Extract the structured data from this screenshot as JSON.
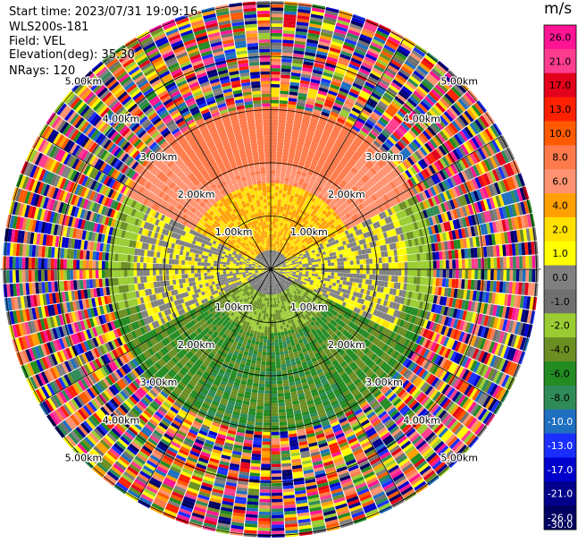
{
  "info": {
    "start_time": "Start time: 2023/07/31 19:09:16",
    "instrument": "WLS200s-181",
    "field": "Field: VEL",
    "elevation": "Elevation(deg): 35.30",
    "nrays": "NRays: 120"
  },
  "colorbar": {
    "unit": "m/s",
    "ticks": [
      "26.0",
      "21.0",
      "17.0",
      "13.0",
      "10.0",
      "8.0",
      "6.0",
      "4.0",
      "2.0",
      "1.0",
      "0.0",
      "-1.0",
      "-2.0",
      "-4.0",
      "-6.0",
      "-8.0",
      "-10.0",
      "-13.0",
      "-17.0",
      "-21.0",
      "-26.0",
      "-30.0"
    ],
    "colors": [
      "#ff1493",
      "#ff3d8f",
      "#e3001b",
      "#ff2000",
      "#ff5a00",
      "#ff7a4a",
      "#ff9270",
      "#ffa000",
      "#ffe000",
      "#ffff00",
      "#808080",
      "#707070",
      "#9acd32",
      "#6b8e23",
      "#228b22",
      "#2e8b57",
      "#1e6fc0",
      "#1a2fff",
      "#0000cd",
      "#00008b",
      "#000060"
    ]
  },
  "chart_data": {
    "type": "heatmap",
    "projection": "polar PPI",
    "field": "VEL",
    "units": "m/s",
    "nrays": 120,
    "range_rings_km": [
      1.0,
      2.0,
      3.0,
      4.0,
      5.0
    ],
    "ring_labels": [
      "1.00km",
      "2.00km",
      "3.00km",
      "4.00km",
      "5.00km"
    ],
    "max_range_km": 5.0,
    "vmin": -30.0,
    "vmax": 26.0,
    "sectors": [
      {
        "azimuth_deg": [
          -60,
          60
        ],
        "range_km": [
          0.4,
          3.0
        ],
        "velocity_ms": 3.0,
        "note": "north: yellow to orange"
      },
      {
        "azimuth_deg": [
          60,
          110
        ],
        "range_km": [
          0.2,
          2.5
        ],
        "velocity_ms": 0.0,
        "note": "east: grey"
      },
      {
        "azimuth_deg": [
          110,
          250
        ],
        "range_km": [
          0.2,
          3.0
        ],
        "velocity_ms": -4.5,
        "note": "south: olive/green"
      },
      {
        "azimuth_deg": [
          250,
          300
        ],
        "range_km": [
          0.2,
          2.5
        ],
        "velocity_ms": 0.0,
        "note": "west: grey"
      },
      {
        "azimuth_deg": [
          0,
          360
        ],
        "range_km": [
          3.0,
          5.0
        ],
        "velocity_ms": null,
        "note": "noise"
      }
    ]
  }
}
